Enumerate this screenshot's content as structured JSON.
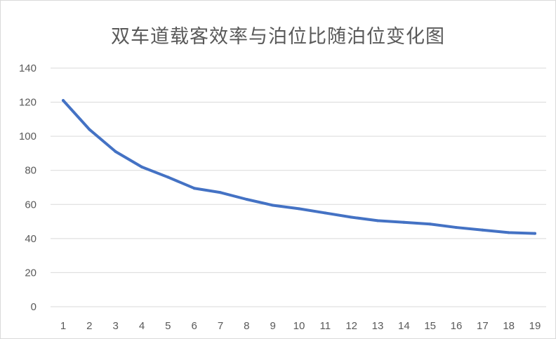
{
  "chart_data": {
    "type": "line",
    "title": "双车道载客效率与泊位比随泊位变化图",
    "xlabel": "",
    "ylabel": "",
    "categories": [
      "1",
      "2",
      "3",
      "4",
      "5",
      "6",
      "7",
      "8",
      "9",
      "10",
      "11",
      "12",
      "13",
      "14",
      "15",
      "16",
      "17",
      "18",
      "19"
    ],
    "series": [
      {
        "values": [
          121,
          104,
          91,
          82,
          76,
          69.5,
          67,
          63,
          59.5,
          57.5,
          55,
          52.5,
          50.5,
          49.5,
          48.5,
          46.5,
          45,
          43.5,
          43
        ]
      }
    ],
    "ylim": [
      0,
      140
    ],
    "yticks": [
      0,
      20,
      40,
      60,
      80,
      100,
      120,
      140
    ],
    "grid": true,
    "legend": "none",
    "colors": {
      "line": "#4472c4",
      "grid": "#d9d9d9",
      "text": "#595959"
    }
  }
}
